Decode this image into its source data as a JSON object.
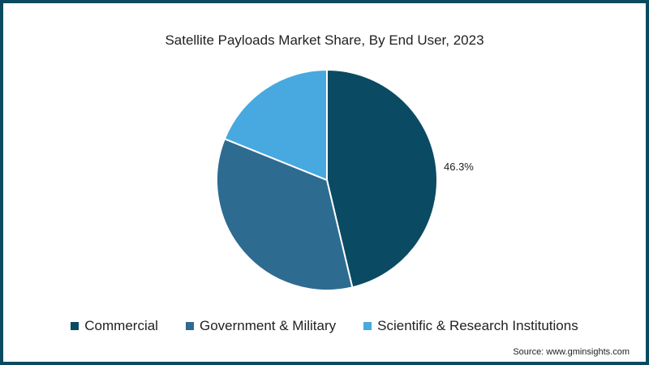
{
  "title": "Satellite Payloads Market Share, By End User, 2023",
  "source": "Source: www.gminsights.com",
  "slice_label": "46.3%",
  "legend": [
    {
      "label": "Commercial",
      "color": "#0b4a63"
    },
    {
      "label": "Government & Military",
      "color": "#2e6b91"
    },
    {
      "label": "Scientific & Research Institutions",
      "color": "#47a9df"
    }
  ],
  "chart_data": {
    "type": "pie",
    "title": "Satellite Payloads Market Share, By End User, 2023",
    "categories": [
      "Commercial",
      "Government & Military",
      "Scientific & Research Institutions"
    ],
    "values": [
      46.3,
      34.8,
      18.9
    ],
    "colors": [
      "#0b4a63",
      "#2e6b91",
      "#47a9df"
    ],
    "labels_shown": {
      "Commercial": "46.3%"
    },
    "legend_position": "bottom",
    "start_angle": "12 o'clock, clockwise"
  }
}
